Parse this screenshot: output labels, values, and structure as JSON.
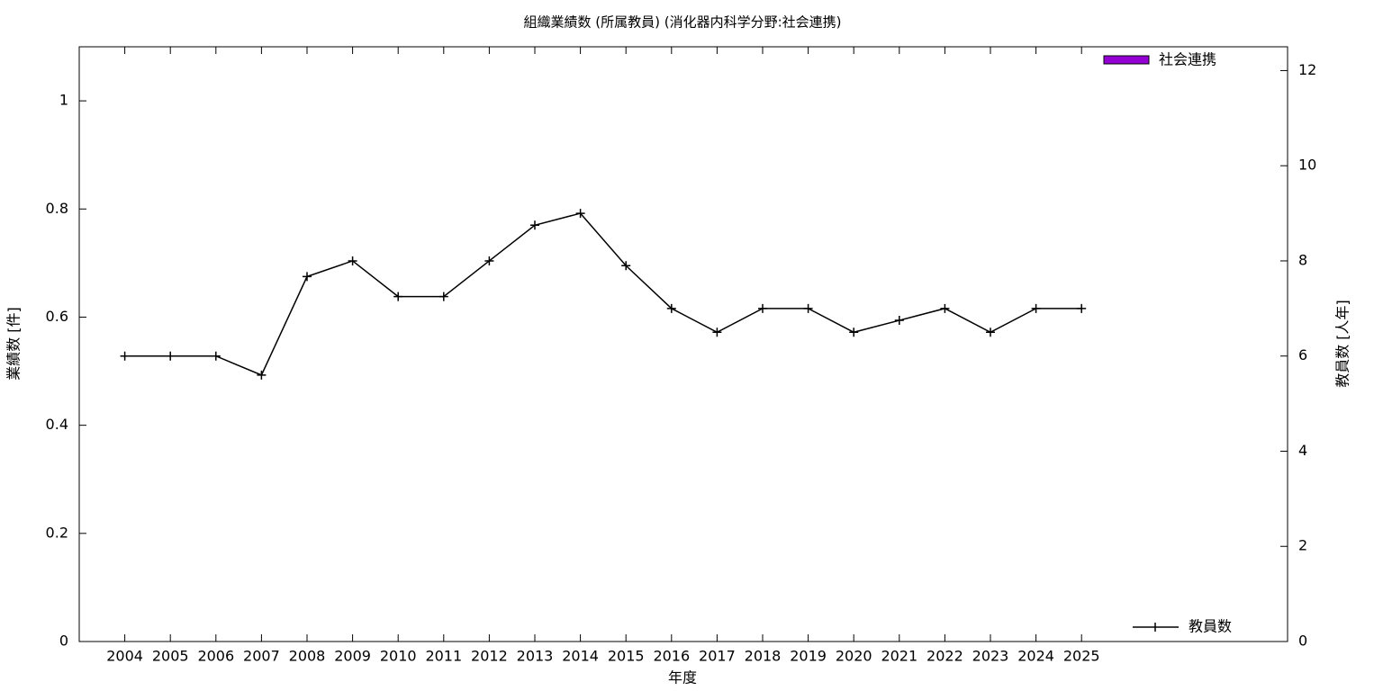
{
  "chart_data": {
    "type": "bar-line",
    "title": "組織業績数 (所属教員) (消化器内科学分野:社会連携)",
    "x_label": "年度",
    "y_label": "業績数 [件]",
    "y2_label": "教員数 [人年]",
    "categories": [
      "2004",
      "2005",
      "2006",
      "2007",
      "2008",
      "2009",
      "2010",
      "2011",
      "2012",
      "2013",
      "2014",
      "2015",
      "2016",
      "2017",
      "2018",
      "2019",
      "2020",
      "2021",
      "2022",
      "2023",
      "2024",
      "2025"
    ],
    "series": [
      {
        "name": "社会連携",
        "type": "bar",
        "color": "#9400d3",
        "axis": "y",
        "values": [
          0,
          0,
          0,
          0,
          0,
          0,
          0,
          0,
          0,
          0,
          0,
          0,
          0,
          0,
          0,
          0,
          0,
          0,
          0,
          0,
          0,
          0
        ]
      },
      {
        "name": "教員数",
        "type": "line",
        "color": "#000000",
        "axis": "y2",
        "values": [
          6,
          6,
          6,
          5.6,
          7.67,
          8,
          7.25,
          7.25,
          8,
          8.75,
          9,
          7.9,
          7,
          6.5,
          7,
          7,
          6.5,
          6.75,
          7,
          6.5,
          7,
          7
        ]
      }
    ],
    "ylim": [
      0,
      1.1
    ],
    "yticks": [
      0,
      0.2,
      0.4,
      0.6,
      0.8,
      1
    ],
    "y2lim": [
      0,
      12.5
    ],
    "y2ticks": [
      0,
      2,
      4,
      6,
      8,
      10,
      12
    ]
  }
}
